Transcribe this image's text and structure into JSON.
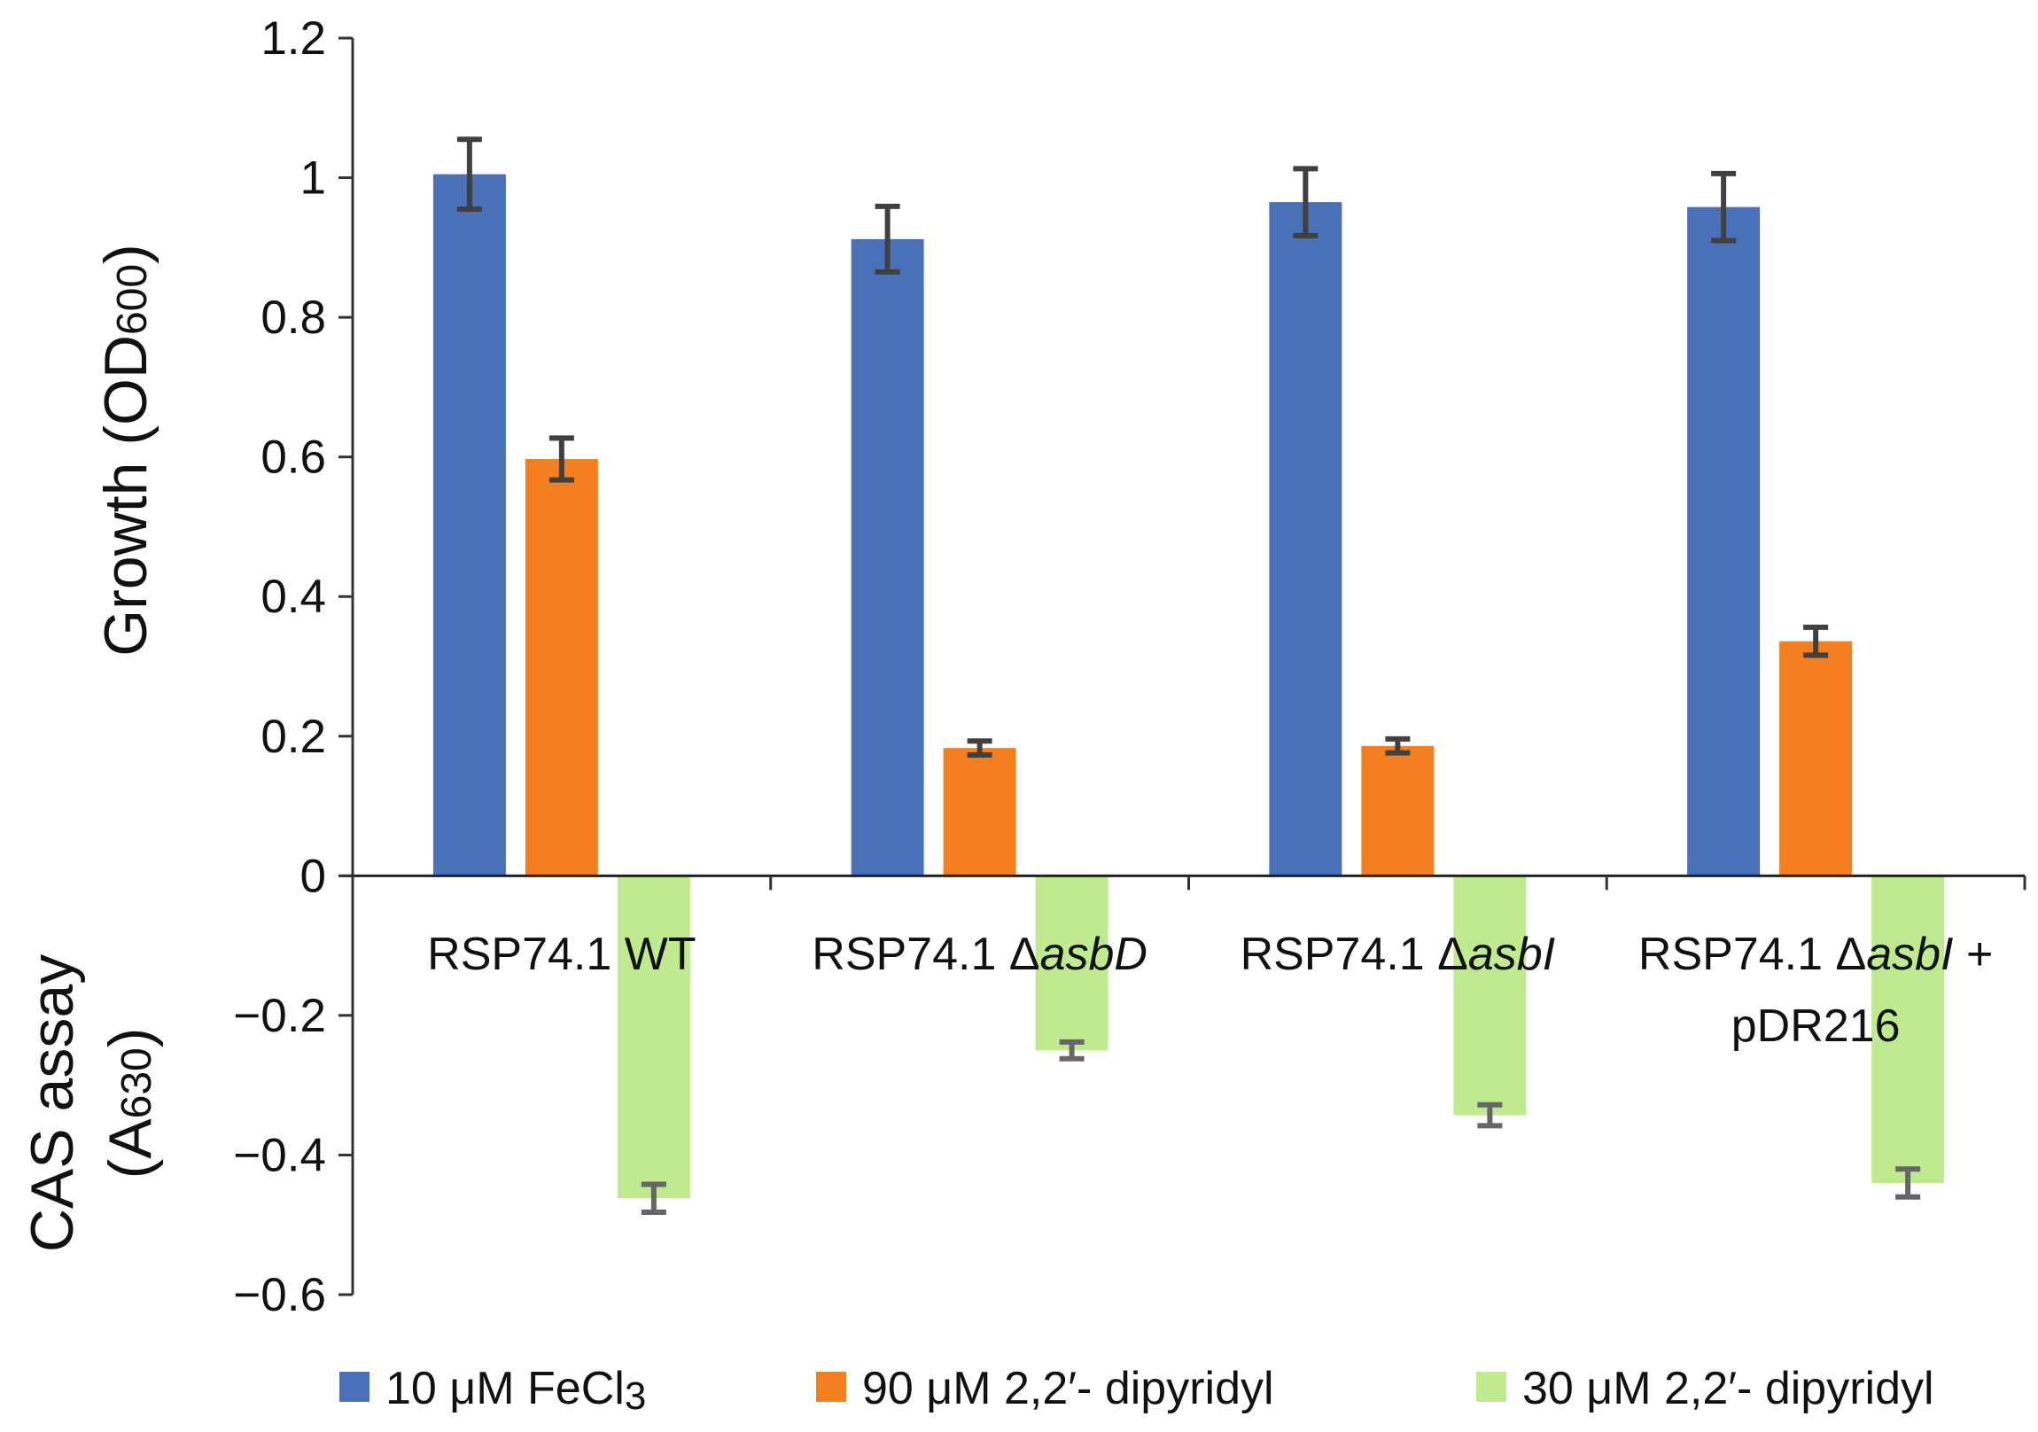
{
  "chart_data": {
    "type": "bar",
    "title": "",
    "categories": [
      {
        "prefix": "RSP74.1 ",
        "italic": "",
        "suffix": "WT",
        "line2": ""
      },
      {
        "prefix": "RSP74.1 Δ",
        "italic": "asbD",
        "suffix": "",
        "line2": ""
      },
      {
        "prefix": "RSP74.1 Δ",
        "italic": "asbI",
        "suffix": "",
        "line2": ""
      },
      {
        "prefix": "RSP74.1 Δ",
        "italic": "asbI",
        "suffix": " +",
        "line2": "pDR216"
      }
    ],
    "ylabel_top": {
      "main": "Growth (OD",
      "sub": "600",
      "close": ")"
    },
    "ylabel_bottom": {
      "line1": "CAS assay",
      "line2_open": "(A",
      "line2_sub": "630",
      "line2_close": ")"
    },
    "ylim": [
      -0.6,
      1.2
    ],
    "yticks": [
      1.2,
      1,
      0.8,
      0.6,
      0.4,
      0.2,
      0,
      -0.2,
      -0.4,
      -0.6
    ],
    "ytick_labels": [
      "1.2",
      "1",
      "0.8",
      "0.6",
      "0.4",
      "0.2",
      "0",
      "−0.2",
      "−0.4",
      "−0.6"
    ],
    "grid": false,
    "legend_position": "bottom",
    "series": [
      {
        "name": "10 μM FeCl",
        "name_sub": "3",
        "color": "#4a71b8",
        "values": [
          1.005,
          0.912,
          0.965,
          0.958
        ],
        "errors": [
          0.05,
          0.047,
          0.048,
          0.048
        ]
      },
      {
        "name": "90 μM 2,2′- dipyridyl",
        "name_sub": "",
        "color": "#f47f20",
        "values": [
          0.597,
          0.183,
          0.186,
          0.336
        ],
        "errors": [
          0.03,
          0.01,
          0.01,
          0.02
        ]
      },
      {
        "name": "30 μM 2,2′- dipyridyl",
        "name_sub": "",
        "color": "#bfea8f",
        "values": [
          -0.462,
          -0.25,
          -0.343,
          -0.44
        ],
        "errors": [
          0.02,
          0.012,
          0.015,
          0.02
        ]
      }
    ]
  }
}
